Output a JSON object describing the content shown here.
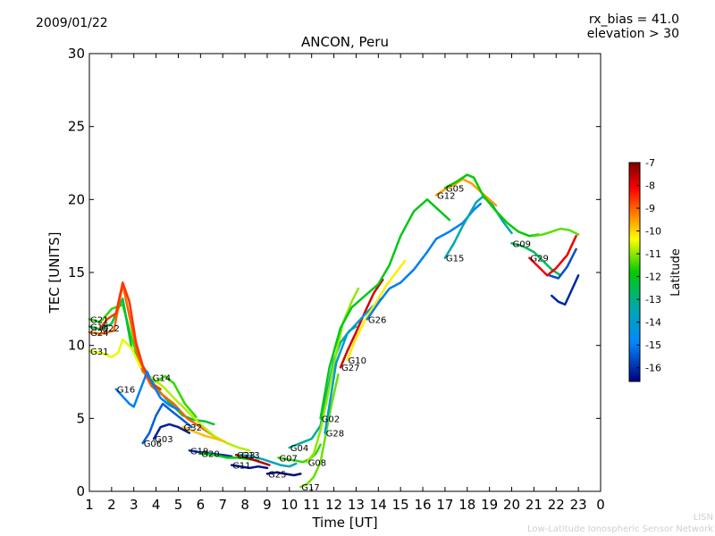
{
  "header": {
    "date": "2009/01/22",
    "rx_bias": "rx_bias = 41.0",
    "elevation": "elevation > 30"
  },
  "footer": {
    "line1": "LISN",
    "line2": "Low-Latitude Ionospheric Sensor Network"
  },
  "chart_data": {
    "type": "line",
    "title": "ANCON, Peru",
    "xlabel": "Time [UT]",
    "ylabel": "TEC [UNITS]",
    "xlim": [
      1,
      24
    ],
    "ylim": [
      0,
      30
    ],
    "x_ticks": [
      1,
      2,
      3,
      4,
      5,
      6,
      7,
      8,
      9,
      10,
      11,
      12,
      13,
      14,
      15,
      16,
      17,
      18,
      19,
      20,
      21,
      22,
      23,
      24
    ],
    "x_tick_labels": [
      "1",
      "2",
      "3",
      "4",
      "5",
      "6",
      "7",
      "8",
      "9",
      "10",
      "11",
      "12",
      "13",
      "14",
      "15",
      "16",
      "17",
      "18",
      "19",
      "20",
      "21",
      "22",
      "23",
      "0"
    ],
    "y_ticks": [
      0,
      5,
      10,
      15,
      20,
      25,
      30
    ],
    "colorbar": {
      "label": "Latitude",
      "range": [
        -16.6,
        -7
      ],
      "ticks": [
        -7,
        -8,
        -9,
        -10,
        -11,
        -12,
        -13,
        -14,
        -15,
        -16
      ]
    },
    "series": [
      {
        "name": "G21",
        "lat": -11.5,
        "x": [
          1.0,
          1.5,
          2.0,
          2.5,
          2.9,
          3.4,
          4.0,
          4.4,
          4.8,
          5.3,
          5.8
        ],
        "y": [
          11.8,
          11.6,
          12.5,
          12.8,
          10.5,
          8.2,
          7.5,
          7.9,
          7.4,
          6.0,
          5.1
        ]
      },
      {
        "name": "G18",
        "lat": -12.3,
        "x": [
          1.0,
          1.5,
          2.0,
          2.5,
          2.9,
          3.4,
          4.0,
          4.6,
          5.2,
          5.7,
          6.2,
          6.6
        ],
        "y": [
          11.3,
          11.1,
          11.5,
          13.2,
          9.8,
          8.6,
          7.1,
          6.1,
          5.2,
          4.9,
          4.8,
          4.6
        ]
      },
      {
        "name": "G24",
        "lat": -9.0,
        "x": [
          1.0,
          1.5,
          2.1,
          2.5,
          3.0,
          3.3,
          3.8,
          4.3,
          4.8,
          5.4,
          6.0,
          6.6
        ],
        "y": [
          10.9,
          10.8,
          11.0,
          14.2,
          10.6,
          8.6,
          7.2,
          6.6,
          6.0,
          5.0,
          4.4,
          3.8
        ]
      },
      {
        "name": "G22",
        "lat": -8.6,
        "x": [
          1.5,
          1.8,
          2.2,
          2.5,
          2.8,
          3.1,
          3.4,
          3.8,
          4.2
        ],
        "y": [
          11.2,
          11.8,
          12.2,
          14.3,
          13.0,
          10.2,
          8.6,
          7.4,
          7.0
        ]
      },
      {
        "name": "G31",
        "lat": -10.5,
        "x": [
          1.0,
          1.5,
          2.0,
          2.3,
          2.5,
          2.9,
          3.3
        ],
        "y": [
          9.6,
          9.5,
          9.2,
          9.5,
          10.4,
          9.8,
          8.5
        ]
      },
      {
        "name": "G16",
        "lat": -15.0,
        "x": [
          2.2,
          2.5,
          2.8,
          3.0,
          3.3,
          3.6,
          3.9,
          4.2,
          4.6,
          5.0
        ],
        "y": [
          7.0,
          6.5,
          6.0,
          5.8,
          7.0,
          8.2,
          7.2,
          6.4,
          5.9,
          5.6
        ]
      },
      {
        "name": "G14",
        "lat": -10.8,
        "x": [
          3.8,
          4.3,
          4.8,
          5.4,
          6.0,
          6.6,
          7.2,
          7.7,
          8.2
        ],
        "y": [
          7.8,
          7.2,
          6.4,
          5.5,
          4.6,
          3.8,
          3.3,
          3.0,
          2.8
        ]
      },
      {
        "name": "G03",
        "lat": -16.2,
        "x": [
          3.9,
          4.2,
          4.6,
          5.0,
          5.5
        ],
        "y": [
          3.6,
          4.4,
          4.6,
          4.4,
          4.0
        ]
      },
      {
        "name": "G06",
        "lat": -15.4,
        "x": [
          3.4,
          3.7,
          4.0,
          4.3,
          4.7,
          5.2,
          5.6
        ],
        "y": [
          3.3,
          4.0,
          5.2,
          6.0,
          5.5,
          4.9,
          4.4
        ]
      },
      {
        "name": "G32",
        "lat": -9.8,
        "x": [
          5.2,
          5.7,
          6.2,
          6.7,
          7.1
        ],
        "y": [
          4.4,
          4.1,
          3.8,
          3.6,
          3.4
        ]
      },
      {
        "name": "G19",
        "lat": -16.0,
        "x": [
          5.5,
          5.9,
          6.4,
          7.0,
          7.4
        ],
        "y": [
          2.8,
          2.7,
          2.6,
          2.5,
          2.4
        ]
      },
      {
        "name": "G20",
        "lat": -11.8,
        "x": [
          6.0,
          6.6,
          7.2,
          7.7,
          8.2,
          8.6
        ],
        "y": [
          2.6,
          2.5,
          2.3,
          2.3,
          2.2,
          2.1
        ]
      },
      {
        "name": "G23",
        "lat": -7.5,
        "x": [
          7.6,
          7.9,
          8.3,
          8.7,
          9.1
        ],
        "y": [
          2.5,
          2.4,
          2.2,
          2.0,
          1.8
        ]
      },
      {
        "name": "G11",
        "lat": -16.4,
        "x": [
          7.4,
          7.8,
          8.2,
          8.6,
          9.0
        ],
        "y": [
          1.8,
          1.7,
          1.6,
          1.7,
          1.6
        ]
      },
      {
        "name": "G13",
        "lat": -13.6,
        "x": [
          7.8,
          8.3,
          8.8,
          9.2,
          9.6,
          10.0,
          10.3
        ],
        "y": [
          2.5,
          2.4,
          2.2,
          2.0,
          1.8,
          1.7,
          1.9
        ]
      },
      {
        "name": "G25",
        "lat": -16.5,
        "x": [
          9.0,
          9.4,
          9.8,
          10.2,
          10.5
        ],
        "y": [
          1.2,
          1.3,
          1.2,
          1.1,
          1.2
        ]
      },
      {
        "name": "G07",
        "lat": -11.5,
        "x": [
          9.5,
          9.9,
          10.3,
          10.6,
          10.9,
          11.2,
          11.4
        ],
        "y": [
          2.3,
          2.2,
          2.1,
          2.0,
          2.2,
          2.6,
          3.2
        ]
      },
      {
        "name": "G17",
        "lat": -11.2,
        "x": [
          10.5,
          10.8,
          11.1,
          11.4,
          11.6,
          11.9,
          12.2
        ],
        "y": [
          0.3,
          0.5,
          1.0,
          2.0,
          3.6,
          6.0,
          8.0
        ]
      },
      {
        "name": "G04",
        "lat": -13.2,
        "x": [
          10.0,
          10.5,
          11.0,
          11.4,
          11.7,
          12.0,
          12.3,
          12.7,
          13.0
        ],
        "y": [
          3.0,
          3.3,
          3.6,
          4.5,
          6.8,
          9.0,
          10.2,
          11.0,
          11.3
        ]
      },
      {
        "name": "G08",
        "lat": -11.0,
        "x": [
          10.8,
          11.1,
          11.4,
          11.7,
          12.0,
          12.4,
          12.8,
          13.1
        ],
        "y": [
          2.0,
          2.6,
          4.2,
          6.4,
          8.7,
          11.5,
          13.0,
          13.9
        ]
      },
      {
        "name": "G27",
        "lat": -7.8,
        "x": [
          12.3,
          12.6,
          13.0,
          13.4,
          13.8,
          14.2
        ],
        "y": [
          8.5,
          9.6,
          10.9,
          12.3,
          13.6,
          14.5
        ]
      },
      {
        "name": "G02",
        "lat": -12.0,
        "x": [
          11.4,
          11.8,
          12.3,
          12.8,
          13.4,
          14.0,
          14.5,
          15.0,
          15.6,
          16.2,
          16.7,
          17.2
        ],
        "y": [
          5.0,
          8.5,
          11.2,
          12.6,
          13.4,
          14.2,
          15.5,
          17.5,
          19.2,
          20.0,
          19.3,
          18.6
        ]
      },
      {
        "name": "G28",
        "lat": -14.0,
        "x": [
          11.6,
          12.1,
          12.6,
          13.2,
          13.7,
          14.2
        ],
        "y": [
          4.0,
          8.8,
          10.8,
          11.8,
          12.6,
          13.3
        ]
      },
      {
        "name": "G10",
        "lat": -10.2,
        "x": [
          12.6,
          13.0,
          13.5,
          14.0,
          14.4,
          14.8,
          15.2
        ],
        "y": [
          9.0,
          10.5,
          12.0,
          13.2,
          14.2,
          15.0,
          15.8
        ]
      },
      {
        "name": "G26",
        "lat": -15.0,
        "x": [
          13.5,
          14.0,
          14.5,
          15.0,
          15.6,
          16.2,
          16.6,
          17.2,
          17.8,
          18.3,
          18.6
        ],
        "y": [
          11.8,
          12.9,
          13.9,
          14.3,
          15.2,
          16.4,
          17.3,
          17.8,
          18.4,
          19.3,
          19.7
        ]
      },
      {
        "name": "G15",
        "lat": -13.5,
        "x": [
          17.0,
          17.4,
          17.8,
          18.1,
          18.4,
          18.7,
          19.1,
          19.6,
          20.0
        ],
        "y": [
          16.0,
          17.0,
          18.2,
          19.0,
          19.8,
          20.2,
          19.7,
          18.5,
          17.7
        ]
      },
      {
        "name": "G12",
        "lat": -9.5,
        "x": [
          16.6,
          17.0,
          17.4,
          17.8,
          18.2,
          18.7,
          19.3
        ],
        "y": [
          20.3,
          20.7,
          21.0,
          21.4,
          21.1,
          20.4,
          19.6
        ]
      },
      {
        "name": "G05",
        "lat": -11.8,
        "x": [
          17.0,
          17.5,
          18.0,
          18.3,
          18.7,
          19.3,
          19.8,
          20.3,
          20.8,
          21.2
        ],
        "y": [
          20.8,
          21.2,
          21.7,
          21.5,
          20.3,
          19.2,
          18.4,
          17.8,
          17.5,
          17.6
        ]
      },
      {
        "name": "G09",
        "lat": -12.6,
        "x": [
          20.0,
          20.5,
          21.0,
          21.4,
          21.8,
          22.2
        ],
        "y": [
          17.0,
          16.8,
          16.4,
          15.8,
          15.2,
          14.8
        ]
      },
      {
        "name": "G29",
        "lat": -8.0,
        "x": [
          20.8,
          21.2,
          21.6,
          22.0,
          22.5,
          22.9
        ],
        "y": [
          16.0,
          15.4,
          14.8,
          15.3,
          16.2,
          17.5
        ]
      },
      {
        "name": "",
        "lat": -11.3,
        "x": [
          21.0,
          21.4,
          21.8,
          22.2,
          22.6,
          23.0
        ],
        "y": [
          17.5,
          17.6,
          17.8,
          18.0,
          17.9,
          17.6
        ]
      },
      {
        "name": "",
        "lat": -15.6,
        "x": [
          21.7,
          22.1,
          22.5,
          22.9
        ],
        "y": [
          14.8,
          14.6,
          15.4,
          16.6
        ]
      },
      {
        "name": "",
        "lat": -16.1,
        "x": [
          21.8,
          22.1,
          22.4,
          22.7,
          23.0
        ],
        "y": [
          13.4,
          13.0,
          12.8,
          13.8,
          14.8
        ]
      }
    ]
  }
}
